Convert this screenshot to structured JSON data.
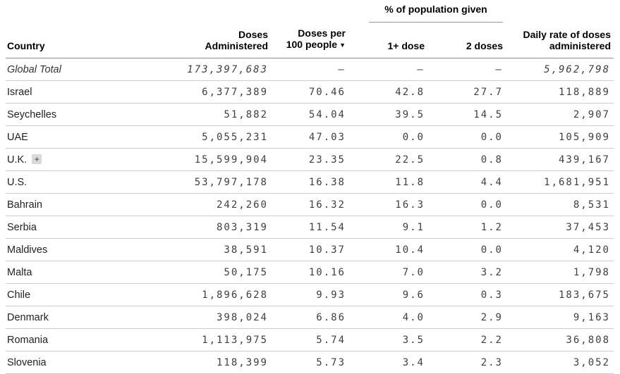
{
  "table": {
    "group_header": "% of population given",
    "sort_indicator": "▼",
    "expand_glyph": "+",
    "columns": [
      {
        "id": "country",
        "lines": [
          "Country"
        ]
      },
      {
        "id": "doses_administered",
        "lines": [
          "Doses",
          "Administered"
        ]
      },
      {
        "id": "per_100",
        "lines": [
          "Doses per",
          "100 people"
        ],
        "sorted": "desc"
      },
      {
        "id": "one_dose",
        "lines": [
          "1+ dose"
        ]
      },
      {
        "id": "two_doses",
        "lines": [
          "2 doses"
        ]
      },
      {
        "id": "daily_rate",
        "lines": [
          "Daily rate of doses",
          "administered"
        ]
      }
    ],
    "rows": [
      {
        "country": "Global Total",
        "total": true,
        "doses_administered": "173,397,683",
        "per_100": "–",
        "one_dose": "–",
        "two_doses": "–",
        "daily_rate": "5,962,798"
      },
      {
        "country": "Israel",
        "doses_administered": "6,377,389",
        "per_100": "70.46",
        "one_dose": "42.8",
        "two_doses": "27.7",
        "daily_rate": "118,889"
      },
      {
        "country": "Seychelles",
        "doses_administered": "51,882",
        "per_100": "54.04",
        "one_dose": "39.5",
        "two_doses": "14.5",
        "daily_rate": "2,907"
      },
      {
        "country": "UAE",
        "doses_administered": "5,055,231",
        "per_100": "47.03",
        "one_dose": "0.0",
        "two_doses": "0.0",
        "daily_rate": "105,909"
      },
      {
        "country": "U.K.",
        "expandable": true,
        "doses_administered": "15,599,904",
        "per_100": "23.35",
        "one_dose": "22.5",
        "two_doses": "0.8",
        "daily_rate": "439,167"
      },
      {
        "country": "U.S.",
        "doses_administered": "53,797,178",
        "per_100": "16.38",
        "one_dose": "11.8",
        "two_doses": "4.4",
        "daily_rate": "1,681,951"
      },
      {
        "country": "Bahrain",
        "doses_administered": "242,260",
        "per_100": "16.32",
        "one_dose": "16.3",
        "two_doses": "0.0",
        "daily_rate": "8,531"
      },
      {
        "country": "Serbia",
        "doses_administered": "803,319",
        "per_100": "11.54",
        "one_dose": "9.1",
        "two_doses": "1.2",
        "daily_rate": "37,453"
      },
      {
        "country": "Maldives",
        "doses_administered": "38,591",
        "per_100": "10.37",
        "one_dose": "10.4",
        "two_doses": "0.0",
        "daily_rate": "4,120"
      },
      {
        "country": "Malta",
        "doses_administered": "50,175",
        "per_100": "10.16",
        "one_dose": "7.0",
        "two_doses": "3.2",
        "daily_rate": "1,798"
      },
      {
        "country": "Chile",
        "doses_administered": "1,896,628",
        "per_100": "9.93",
        "one_dose": "9.6",
        "two_doses": "0.3",
        "daily_rate": "183,675"
      },
      {
        "country": "Denmark",
        "doses_administered": "398,024",
        "per_100": "6.86",
        "one_dose": "4.0",
        "two_doses": "2.9",
        "daily_rate": "9,163"
      },
      {
        "country": "Romania",
        "doses_administered": "1,113,975",
        "per_100": "5.74",
        "one_dose": "3.5",
        "two_doses": "2.2",
        "daily_rate": "36,808"
      },
      {
        "country": "Slovenia",
        "doses_administered": "118,399",
        "per_100": "5.73",
        "one_dose": "3.4",
        "two_doses": "2.3",
        "daily_rate": "3,052"
      }
    ]
  },
  "colors": {
    "background": "#ffffff",
    "header_text": "#000000",
    "body_text": "#3f3f3f",
    "row_divider": "#cccccc",
    "header_divider": "#8f8f8f",
    "expand_button_bg": "#d9d9d9"
  }
}
